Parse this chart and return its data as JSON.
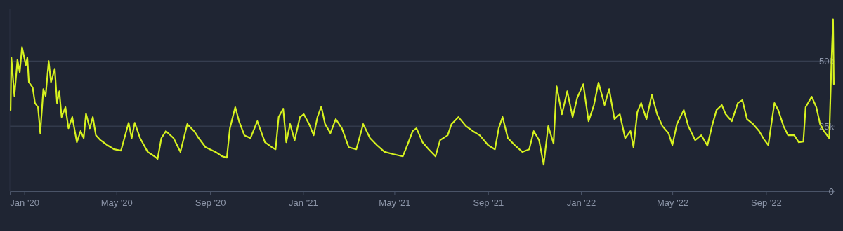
{
  "chart_data": {
    "type": "line",
    "x": [
      "2019-12-14",
      "2019-12-15",
      "2019-12-19",
      "2019-12-23",
      "2019-12-26",
      "2019-12-29",
      "2020-01-03",
      "2020-01-05",
      "2020-01-07",
      "2020-01-12",
      "2020-01-15",
      "2020-01-19",
      "2020-01-22",
      "2020-01-26",
      "2020-01-29",
      "2020-02-02",
      "2020-02-05",
      "2020-02-10",
      "2020-02-13",
      "2020-02-16",
      "2020-02-19",
      "2020-02-24",
      "2020-02-28",
      "2020-03-04",
      "2020-03-10",
      "2020-03-15",
      "2020-03-19",
      "2020-03-22",
      "2020-03-27",
      "2020-03-31",
      "2020-04-04",
      "2020-04-10",
      "2020-04-19",
      "2020-04-28",
      "2020-05-07",
      "2020-05-14",
      "2020-05-17",
      "2020-05-21",
      "2020-05-25",
      "2020-06-01",
      "2020-06-11",
      "2020-06-20",
      "2020-06-24",
      "2020-06-29",
      "2020-07-05",
      "2020-07-15",
      "2020-07-24",
      "2020-08-02",
      "2020-08-11",
      "2020-08-17",
      "2020-08-26",
      "2020-09-08",
      "2020-09-17",
      "2020-09-23",
      "2020-09-27",
      "2020-10-04",
      "2020-10-09",
      "2020-10-16",
      "2020-10-24",
      "2020-11-02",
      "2020-11-12",
      "2020-11-21",
      "2020-11-26",
      "2020-11-30",
      "2020-12-06",
      "2020-12-10",
      "2020-12-15",
      "2020-12-21",
      "2020-12-28",
      "2021-01-02",
      "2021-01-09",
      "2021-01-15",
      "2021-01-20",
      "2021-01-25",
      "2021-01-30",
      "2021-02-06",
      "2021-02-13",
      "2021-02-21",
      "2021-03-02",
      "2021-03-12",
      "2021-03-21",
      "2021-03-30",
      "2021-04-08",
      "2021-04-18",
      "2021-04-30",
      "2021-05-12",
      "2021-05-18",
      "2021-05-25",
      "2021-05-30",
      "2021-06-07",
      "2021-06-15",
      "2021-06-24",
      "2021-06-30",
      "2021-07-10",
      "2021-07-15",
      "2021-07-24",
      "2021-08-03",
      "2021-08-12",
      "2021-08-21",
      "2021-09-01",
      "2021-09-10",
      "2021-09-15",
      "2021-09-20",
      "2021-09-27",
      "2021-10-06",
      "2021-10-16",
      "2021-10-25",
      "2021-10-31",
      "2021-11-07",
      "2021-11-13",
      "2021-11-19",
      "2021-11-26",
      "2021-11-30",
      "2021-12-07",
      "2021-12-14",
      "2021-12-21",
      "2021-12-27",
      "2022-01-04",
      "2022-01-11",
      "2022-01-18",
      "2022-01-24",
      "2022-02-01",
      "2022-02-07",
      "2022-02-14",
      "2022-02-21",
      "2022-02-28",
      "2022-03-07",
      "2022-03-11",
      "2022-03-16",
      "2022-03-21",
      "2022-03-28",
      "2022-04-04",
      "2022-04-11",
      "2022-04-18",
      "2022-04-26",
      "2022-05-01",
      "2022-05-07",
      "2022-05-16",
      "2022-05-22",
      "2022-05-31",
      "2022-06-08",
      "2022-06-16",
      "2022-06-22",
      "2022-06-28",
      "2022-07-05",
      "2022-07-10",
      "2022-07-18",
      "2022-07-26",
      "2022-08-01",
      "2022-08-07",
      "2022-08-15",
      "2022-08-23",
      "2022-08-30",
      "2022-09-04",
      "2022-09-12",
      "2022-09-17",
      "2022-09-24",
      "2022-09-30",
      "2022-10-08",
      "2022-10-14",
      "2022-10-20",
      "2022-10-23",
      "2022-10-31",
      "2022-11-06",
      "2022-11-11",
      "2022-11-16",
      "2022-11-23",
      "2022-11-26",
      "2022-11-28",
      "2022-11-29"
    ],
    "series": [
      {
        "color": "#d7f21f",
        "values": [
          31200,
          51300,
          36600,
          50500,
          45700,
          55400,
          48400,
          51300,
          41900,
          39800,
          33900,
          32300,
          22300,
          39200,
          36600,
          50000,
          41900,
          47000,
          33900,
          38400,
          28500,
          32300,
          24200,
          28500,
          18800,
          23100,
          20400,
          29800,
          24200,
          28500,
          21500,
          19600,
          17700,
          16100,
          15600,
          23100,
          26300,
          20400,
          26300,
          20400,
          15100,
          13400,
          12400,
          20400,
          23100,
          20400,
          15100,
          25800,
          23100,
          20400,
          16900,
          15100,
          13400,
          12900,
          24200,
          32300,
          26900,
          21500,
          20400,
          26900,
          18800,
          16900,
          16100,
          28500,
          31700,
          18800,
          25800,
          19600,
          28500,
          29600,
          25800,
          21500,
          28500,
          32500,
          25800,
          22300,
          27700,
          24200,
          16900,
          16100,
          25800,
          20400,
          17700,
          15100,
          14200,
          13400,
          17700,
          23100,
          24200,
          18800,
          16100,
          13400,
          19600,
          21500,
          25800,
          28500,
          25000,
          23100,
          21500,
          17700,
          16100,
          24200,
          28500,
          20400,
          17700,
          15100,
          16100,
          23100,
          19600,
          10200,
          25000,
          18300,
          40300,
          29600,
          38400,
          28500,
          35800,
          41100,
          26900,
          33100,
          41700,
          33100,
          39200,
          27700,
          29600,
          20400,
          23100,
          16900,
          30400,
          33900,
          27700,
          37100,
          29600,
          25000,
          22300,
          17700,
          25800,
          31200,
          25000,
          19600,
          21500,
          17500,
          25000,
          31200,
          33100,
          29600,
          26900,
          33900,
          35000,
          27700,
          25800,
          23100,
          19600,
          17700,
          33900,
          31200,
          25000,
          21500,
          21500,
          18800,
          19100,
          32300,
          36300,
          32300,
          25800,
          23100,
          20400,
          50000,
          66100,
          41100
        ]
      }
    ],
    "xlim": [
      "2019-12-13",
      "2022-11-30"
    ],
    "xticks": [
      {
        "value": "2020-01-01",
        "label": "Jan '20"
      },
      {
        "value": "2020-05-01",
        "label": "May '20"
      },
      {
        "value": "2020-09-01",
        "label": "Sep '20"
      },
      {
        "value": "2021-01-01",
        "label": "Jan '21"
      },
      {
        "value": "2021-05-01",
        "label": "May '21"
      },
      {
        "value": "2021-09-01",
        "label": "Sep '21"
      },
      {
        "value": "2022-01-01",
        "label": "Jan '22"
      },
      {
        "value": "2022-05-01",
        "label": "May '22"
      },
      {
        "value": "2022-09-01",
        "label": "Sep '22"
      }
    ],
    "ylim": [
      0,
      70000
    ],
    "yticks": [
      {
        "value": 0,
        "label": "0"
      },
      {
        "value": 25000,
        "label": "25k"
      },
      {
        "value": 50000,
        "label": "50k"
      }
    ],
    "grid": "y"
  }
}
